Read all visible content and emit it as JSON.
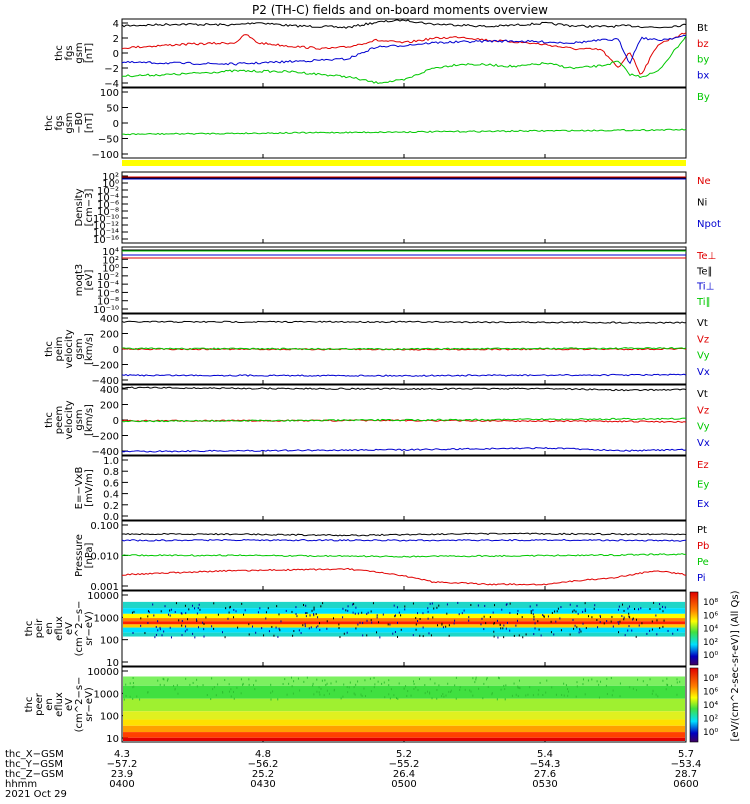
{
  "title": "P2 (TH-C) fields and on-board moments overview",
  "colors": {
    "black": "#000000",
    "red": "#e00000",
    "green": "#00c800",
    "blue": "#0000d0",
    "yellow": "#ffff00",
    "purple": "#7a0090"
  },
  "chart_data": [
    {
      "id": "fgs",
      "type": "line",
      "ylabel": [
        "thc",
        "fgs",
        "gsm",
        "[nT]"
      ],
      "ylim": [
        -4,
        4
      ],
      "yticks": [
        "4",
        "2",
        "0",
        "−2",
        "−4"
      ],
      "series": [
        {
          "name": "Bt",
          "color": "black",
          "x": [
            0,
            10,
            20,
            24,
            30,
            36,
            40,
            45,
            50,
            55,
            60,
            65,
            70,
            75,
            80,
            85,
            90,
            95,
            100
          ],
          "values": [
            3.2,
            3.4,
            3.3,
            3.6,
            3.2,
            3.1,
            3.0,
            3.6,
            3.9,
            3.4,
            3.3,
            3.1,
            3.3,
            3.5,
            3.2,
            3.1,
            3.2,
            3.0,
            3.3
          ]
        },
        {
          "name": "bz",
          "color": "red",
          "x": [
            0,
            10,
            20,
            22,
            24,
            30,
            36,
            40,
            45,
            50,
            55,
            60,
            65,
            70,
            75,
            80,
            85,
            88,
            90,
            92,
            95,
            100
          ],
          "values": [
            0.6,
            1.0,
            1.2,
            2.2,
            1.2,
            0.8,
            0.5,
            0.7,
            1.5,
            1.2,
            1.7,
            1.9,
            1.5,
            1.3,
            1.0,
            0.5,
            0.4,
            -1.8,
            0.2,
            -2.6,
            1.0,
            2.4
          ]
        },
        {
          "name": "by",
          "color": "green",
          "x": [
            0,
            10,
            20,
            30,
            40,
            45,
            50,
            55,
            60,
            65,
            70,
            75,
            80,
            85,
            88,
            90,
            92,
            95,
            100
          ],
          "values": [
            -2.7,
            -2.5,
            -2.1,
            -2.2,
            -2.8,
            -3.5,
            -3.2,
            -1.8,
            -1.3,
            -1.4,
            -1.6,
            -1.2,
            -1.8,
            -1.5,
            -1.0,
            -2.5,
            -2.8,
            -2.2,
            2.0
          ]
        },
        {
          "name": "bx",
          "color": "blue",
          "x": [
            0,
            10,
            20,
            30,
            40,
            45,
            50,
            55,
            60,
            65,
            70,
            75,
            80,
            85,
            88,
            90,
            92,
            95,
            100
          ],
          "values": [
            -1.1,
            -1.2,
            -1.3,
            -1.0,
            -0.7,
            0.7,
            0.9,
            1.2,
            1.3,
            1.4,
            1.4,
            1.3,
            1.2,
            1.5,
            1.6,
            -1.2,
            1.8,
            1.5,
            2.0
          ]
        }
      ]
    },
    {
      "id": "fgs_dsl",
      "type": "line",
      "ylabel": [
        "thc",
        "fgs",
        "gsm",
        "−B0",
        "[nT]"
      ],
      "ylim": [
        -130,
        100
      ],
      "yticks": [
        "100",
        "50",
        "0",
        "−50",
        "−100"
      ],
      "series": [
        {
          "name": "By",
          "color": "green",
          "x": [
            0,
            20,
            40,
            60,
            80,
            100
          ],
          "values": [
            -52,
            -49,
            -46,
            -43,
            -40,
            -37
          ]
        }
      ]
    },
    {
      "id": "density",
      "type": "line",
      "log": true,
      "ylabel": [
        "Density",
        "[cm−3]"
      ],
      "ylim_exp": [
        -18,
        2
      ],
      "yticks": [
        "10²",
        "10⁰",
        "10⁻²",
        "10⁻⁴",
        "10⁻⁶",
        "10⁻⁸",
        "10⁻¹⁰",
        "10⁻¹²",
        "10⁻¹⁴",
        "10⁻¹⁶"
      ],
      "series": [
        {
          "name": "Ne",
          "color": "red"
        },
        {
          "name": "Ni",
          "color": "black"
        },
        {
          "name": "Npot",
          "color": "blue"
        }
      ]
    },
    {
      "id": "temperature",
      "type": "line",
      "log": true,
      "ylabel": [
        "moqt3",
        "[eV]"
      ],
      "ylim_exp": [
        -10,
        4
      ],
      "yticks": [
        "10⁴",
        "10²",
        "10⁰",
        "10⁻²",
        "10⁻⁴",
        "10⁻⁶",
        "10⁻⁸",
        "10⁻¹⁰"
      ],
      "series": [
        {
          "name": "Te⊥",
          "color": "red"
        },
        {
          "name": "Te∥",
          "color": "black"
        },
        {
          "name": "Ti⊥",
          "color": "blue"
        },
        {
          "name": "Ti∥",
          "color": "green"
        }
      ]
    },
    {
      "id": "ion_velocity",
      "type": "line",
      "ylabel": [
        "thc",
        "peim",
        "velocity",
        "gsm",
        "[km/s]"
      ],
      "ylim": [
        -400,
        400
      ],
      "yticks": [
        "400",
        "200",
        "0",
        "−200",
        "−400"
      ],
      "series": [
        {
          "name": "Vt",
          "color": "black",
          "x": [
            0,
            50,
            100
          ],
          "values": [
            310,
            310,
            300
          ]
        },
        {
          "name": "Vz",
          "color": "red",
          "x": [
            0,
            50,
            100
          ],
          "values": [
            0,
            -5,
            0
          ]
        },
        {
          "name": "Vy",
          "color": "green",
          "x": [
            0,
            50,
            100
          ],
          "values": [
            5,
            0,
            10
          ]
        },
        {
          "name": "Vx",
          "color": "blue",
          "x": [
            0,
            50,
            100
          ],
          "values": [
            -300,
            -305,
            -295
          ]
        }
      ]
    },
    {
      "id": "electron_velocity",
      "type": "line",
      "ylabel": [
        "thc",
        "peem",
        "velocity",
        "gsm",
        "[km/s]"
      ],
      "ylim": [
        -400,
        400
      ],
      "yticks": [
        "400",
        "200",
        "0",
        "−200",
        "−400"
      ],
      "series": [
        {
          "name": "Vt",
          "color": "black",
          "x": [
            0,
            25,
            50,
            75,
            90,
            100
          ],
          "values": [
            370,
            360,
            355,
            360,
            340,
            350
          ]
        },
        {
          "name": "Vz",
          "color": "red",
          "x": [
            0,
            50,
            100
          ],
          "values": [
            -10,
            -5,
            -20
          ]
        },
        {
          "name": "Vy",
          "color": "green",
          "x": [
            0,
            50,
            100
          ],
          "values": [
            -15,
            0,
            15
          ]
        },
        {
          "name": "Vx",
          "color": "blue",
          "x": [
            0,
            25,
            50,
            75,
            90,
            100
          ],
          "values": [
            -360,
            -350,
            -340,
            -320,
            -350,
            -340
          ]
        }
      ]
    },
    {
      "id": "efield",
      "type": "line",
      "ylabel": [
        "E=−VxB",
        "[mV/m]"
      ],
      "ylim": [
        0,
        1
      ],
      "yticks": [
        "1.0",
        "0.8",
        "0.6",
        "0.4",
        "0.2",
        "0.0"
      ],
      "series": [
        {
          "name": "Ez",
          "color": "red"
        },
        {
          "name": "Ey",
          "color": "green"
        },
        {
          "name": "Ex",
          "color": "blue"
        }
      ]
    },
    {
      "id": "pressure",
      "type": "line",
      "log": true,
      "ylabel": [
        "Pressure",
        "[nPa]"
      ],
      "ylim_exp": [
        -3,
        -0.85
      ],
      "yticks": [
        "0.100",
        "0.010",
        "0.001"
      ],
      "series": [
        {
          "name": "Pt",
          "color": "black",
          "x": [
            0,
            20,
            40,
            55,
            70,
            88,
            100
          ],
          "values": [
            0.055,
            0.055,
            0.05,
            0.055,
            0.057,
            0.055,
            0.055
          ]
        },
        {
          "name": "Pb",
          "color": "red",
          "x": [
            0,
            10,
            20,
            40,
            55,
            65,
            75,
            88,
            95,
            100
          ],
          "values": [
            0.003,
            0.0035,
            0.004,
            0.0045,
            0.0018,
            0.0015,
            0.0015,
            0.0025,
            0.004,
            0.003
          ]
        },
        {
          "name": "Pe",
          "color": "green",
          "x": [
            0,
            20,
            50,
            80,
            100
          ],
          "values": [
            0.012,
            0.012,
            0.011,
            0.012,
            0.013
          ]
        },
        {
          "name": "Pi",
          "color": "blue",
          "x": [
            0,
            20,
            50,
            80,
            100
          ],
          "values": [
            0.035,
            0.036,
            0.035,
            0.036,
            0.034
          ]
        }
      ]
    },
    {
      "id": "ion_spectrogram",
      "type": "heatmap",
      "ylabel": [
        "thc",
        "peir",
        "en",
        "eflux",
        "eV",
        "(cm^2−s−",
        "sr−eV)"
      ],
      "yticks": [
        "10000",
        "1000",
        "100",
        "10"
      ],
      "band_energy_ev": [
        300,
        3000
      ]
    },
    {
      "id": "electron_spectrogram",
      "type": "heatmap",
      "ylabel": [
        "thc",
        "peer",
        "en",
        "eflux",
        "eV",
        "(cm^2−s−",
        "sr−eV)"
      ],
      "yticks": [
        "10000",
        "1000",
        "100",
        "10"
      ],
      "band_energy_ev": [
        5,
        3000
      ]
    }
  ],
  "colorbar": {
    "top_ticks": [
      "10⁸",
      "10⁶",
      "10⁴",
      "10²",
      "10⁰"
    ],
    "bottom_ticks": [
      "10⁸",
      "10⁶",
      "10⁴",
      "10²",
      "10⁰"
    ],
    "label": "[eV/(cm^2-sec-sr-eV)] (All Qs)"
  },
  "xaxis": {
    "rows": [
      {
        "label": "thc_X−GSM",
        "values": [
          "4.3",
          "4.8",
          "5.2",
          "5.4",
          "5.7"
        ]
      },
      {
        "label": "thc_Y−GSM",
        "values": [
          "−57.2",
          "−56.2",
          "−55.2",
          "−54.3",
          "−53.4"
        ]
      },
      {
        "label": "thc_Z−GSM",
        "values": [
          "23.9",
          "25.2",
          "26.4",
          "27.6",
          "28.7"
        ]
      },
      {
        "label": "hhmm",
        "values": [
          "0400",
          "0430",
          "0500",
          "0530",
          "0600"
        ]
      }
    ],
    "date": "2021 Oct 29"
  }
}
